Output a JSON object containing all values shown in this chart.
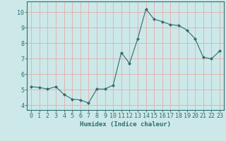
{
  "x": [
    0,
    1,
    2,
    3,
    4,
    5,
    6,
    7,
    8,
    9,
    10,
    11,
    12,
    13,
    14,
    15,
    16,
    17,
    18,
    19,
    20,
    21,
    22,
    23
  ],
  "y": [
    5.2,
    5.15,
    5.05,
    5.2,
    4.7,
    4.4,
    4.35,
    4.15,
    5.05,
    5.05,
    5.3,
    7.4,
    6.7,
    8.3,
    10.2,
    9.55,
    9.4,
    9.2,
    9.15,
    8.85,
    8.3,
    7.1,
    7.0,
    7.5
  ],
  "line_color": "#2d6e6e",
  "marker": "D",
  "marker_size": 2.0,
  "bg_color": "#cce8e8",
  "grid_color": "#e8aaaa",
  "xlabel": "Humidex (Indice chaleur)",
  "xlim": [
    -0.5,
    23.5
  ],
  "ylim": [
    3.7,
    10.7
  ],
  "yticks": [
    4,
    5,
    6,
    7,
    8,
    9,
    10
  ],
  "xticks": [
    0,
    1,
    2,
    3,
    4,
    5,
    6,
    7,
    8,
    9,
    10,
    11,
    12,
    13,
    14,
    15,
    16,
    17,
    18,
    19,
    20,
    21,
    22,
    23
  ],
  "tick_color": "#2d6e6e",
  "axis_color": "#2d6e6e",
  "label_fontsize": 6.5,
  "tick_fontsize": 6.0
}
